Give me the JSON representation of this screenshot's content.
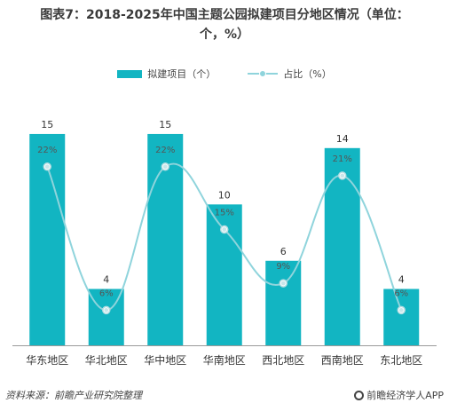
{
  "title_line1": "图表7：2018-2025年中国主题公园拟建项目分地区情况（单位：",
  "title_line2": "个，%）",
  "legend": {
    "bar": "拟建项目（个）",
    "line": "占比（%）"
  },
  "source": "资料来源：前瞻产业研究院整理",
  "brand": "前瞻经济学人APP",
  "colors": {
    "bar": "#12b5c2",
    "line": "#8fd4dc",
    "text": "#333333"
  },
  "chart_data": {
    "type": "bar",
    "categories": [
      "华东地区",
      "华北地区",
      "华中地区",
      "华南地区",
      "西北地区",
      "西南地区",
      "东北地区"
    ],
    "series": [
      {
        "name": "拟建项目（个）",
        "type": "bar",
        "values": [
          15,
          4,
          15,
          10,
          6,
          14,
          4
        ]
      },
      {
        "name": "占比（%）",
        "type": "line",
        "values": [
          22,
          6,
          22,
          15,
          9,
          21,
          6
        ],
        "labels": [
          "22%",
          "6%",
          "22%",
          "15%",
          "9%",
          "21%",
          "6%"
        ]
      }
    ],
    "grid": false,
    "legend_position": "top"
  }
}
